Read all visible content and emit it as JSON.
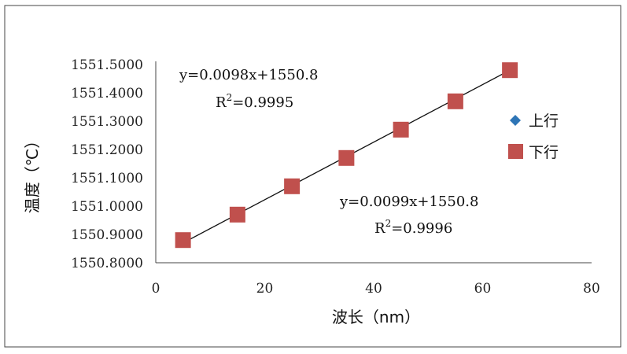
{
  "chart_data": {
    "type": "scatter",
    "xlabel": "波长（nm）",
    "ylabel": "温度（℃）",
    "xlim": [
      0,
      80
    ],
    "ylim": [
      1550.8,
      1551.5
    ],
    "x_ticks": [
      "0",
      "20",
      "40",
      "60",
      "80"
    ],
    "y_ticks": [
      "1550.8000",
      "1550.9000",
      "1551.0000",
      "1551.1000",
      "1551.2000",
      "1551.3000",
      "1551.4000",
      "1551.5000"
    ],
    "grid": false,
    "legend_position": "right",
    "series": [
      {
        "name": "上行",
        "marker": "diamond",
        "color": "#2E75B6",
        "x": [
          5,
          15,
          25,
          35,
          45,
          55,
          65
        ],
        "y": [
          1550.88,
          1550.97,
          1551.07,
          1551.17,
          1551.27,
          1551.37,
          1551.48
        ]
      },
      {
        "name": "下行",
        "marker": "square",
        "color": "#C0504D",
        "x": [
          5,
          15,
          25,
          35,
          45,
          55,
          65
        ],
        "y": [
          1550.88,
          1550.97,
          1551.07,
          1551.17,
          1551.27,
          1551.37,
          1551.48
        ]
      }
    ],
    "trendline": {
      "x": [
        5,
        65
      ],
      "y": [
        1550.87,
        1551.48
      ],
      "color": "#111111"
    },
    "annotations": [
      {
        "equation": "y=0.0098x+1550.8",
        "r2_prefix": "R",
        "r2_sup": "2",
        "r2_value": "=0.9995"
      },
      {
        "equation": "y=0.0099x+1550.8",
        "r2_prefix": "R",
        "r2_sup": "2",
        "r2_value": "=0.9996"
      }
    ]
  }
}
